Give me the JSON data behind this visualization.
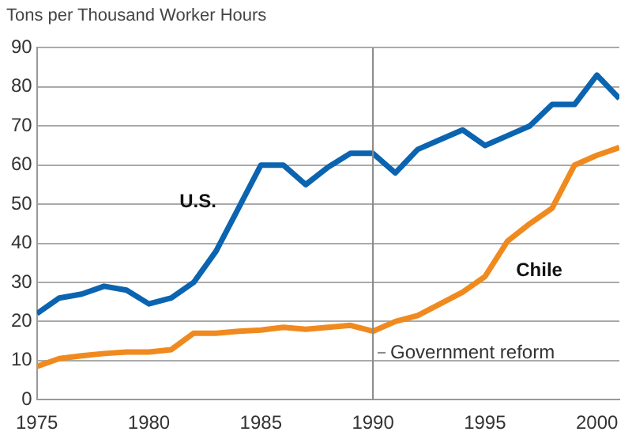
{
  "chart_data": {
    "type": "line",
    "ylabel": "Tons per Thousand Worker Hours",
    "x": [
      1975,
      1976,
      1977,
      1978,
      1979,
      1980,
      1981,
      1982,
      1983,
      1984,
      1985,
      1986,
      1987,
      1988,
      1989,
      1990,
      1991,
      1992,
      1993,
      1994,
      1995,
      1996,
      1997,
      1998,
      1999,
      2000,
      2001
    ],
    "series": [
      {
        "name": "U.S.",
        "color": "#0b64b0",
        "values": [
          22,
          26,
          27,
          29,
          28,
          24.5,
          26,
          30,
          38,
          49,
          60,
          60,
          55,
          59.5,
          63,
          63,
          58,
          64,
          66.5,
          69,
          65,
          67.5,
          70,
          75.5,
          75.5,
          83,
          77
        ]
      },
      {
        "name": "Chile",
        "color": "#f08a1e",
        "values": [
          8.5,
          10.5,
          11.2,
          11.8,
          12.2,
          12.2,
          12.8,
          17,
          17,
          17.5,
          17.8,
          18.5,
          18,
          18.5,
          19,
          17.5,
          20,
          21.5,
          24.5,
          27.5,
          31.5,
          40.5,
          45,
          49,
          60,
          62.5,
          64.5
        ]
      }
    ],
    "xlim": [
      1975,
      2001
    ],
    "xticks": [
      1975,
      1980,
      1985,
      1990,
      1995,
      2000
    ],
    "ylim": [
      0,
      90
    ],
    "yticks": [
      0,
      10,
      20,
      30,
      40,
      50,
      60,
      70,
      80,
      90
    ],
    "ref_lines": [
      {
        "axis": "x",
        "value": 1990,
        "label": "Government reform",
        "color": "#888888"
      }
    ],
    "grid": "y",
    "legend": false,
    "marker": "none",
    "line_style": "solid"
  }
}
